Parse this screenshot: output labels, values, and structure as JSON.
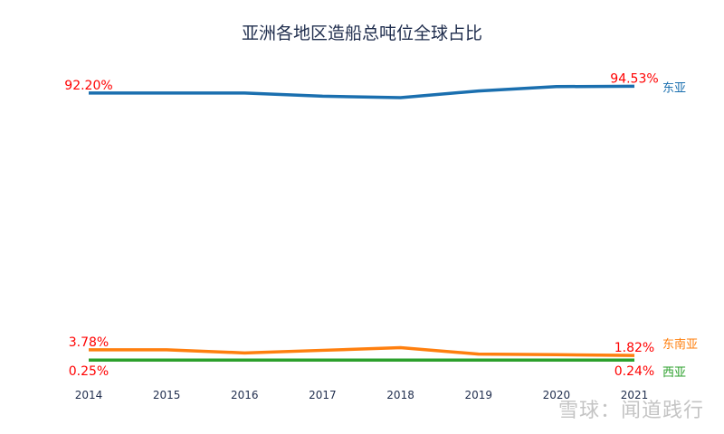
{
  "chart_data": {
    "type": "line",
    "title": "亚洲各地区造船总吨位全球占比",
    "categories": [
      "2014",
      "2015",
      "2016",
      "2017",
      "2018",
      "2019",
      "2020",
      "2021"
    ],
    "ylim": [
      0,
      100
    ],
    "grid": false,
    "series": [
      {
        "name": "东亚",
        "color": "#1a6faf",
        "values": [
          92.2,
          92.2,
          92.2,
          91.1,
          90.6,
          92.9,
          94.4,
          94.53
        ]
      },
      {
        "name": "东南亚",
        "color": "#ff7f0e",
        "values": [
          3.78,
          3.78,
          2.7,
          3.6,
          4.5,
          2.3,
          2.1,
          1.82
        ]
      },
      {
        "name": "西亚",
        "color": "#2ca02c",
        "values": [
          0.25,
          0.25,
          0.25,
          0.25,
          0.25,
          0.25,
          0.25,
          0.24
        ]
      }
    ],
    "annotations": [
      {
        "series": 0,
        "index": 0,
        "text": "92.20%"
      },
      {
        "series": 0,
        "index": 7,
        "text": "94.53%"
      },
      {
        "series": 1,
        "index": 0,
        "text": "3.78%"
      },
      {
        "series": 1,
        "index": 7,
        "text": "1.82%"
      },
      {
        "series": 2,
        "index": 0,
        "text": "0.25%"
      },
      {
        "series": 2,
        "index": 7,
        "text": "0.24%"
      }
    ],
    "annotation_color": "#ff0000"
  },
  "watermark": "雪球：闻道践行"
}
